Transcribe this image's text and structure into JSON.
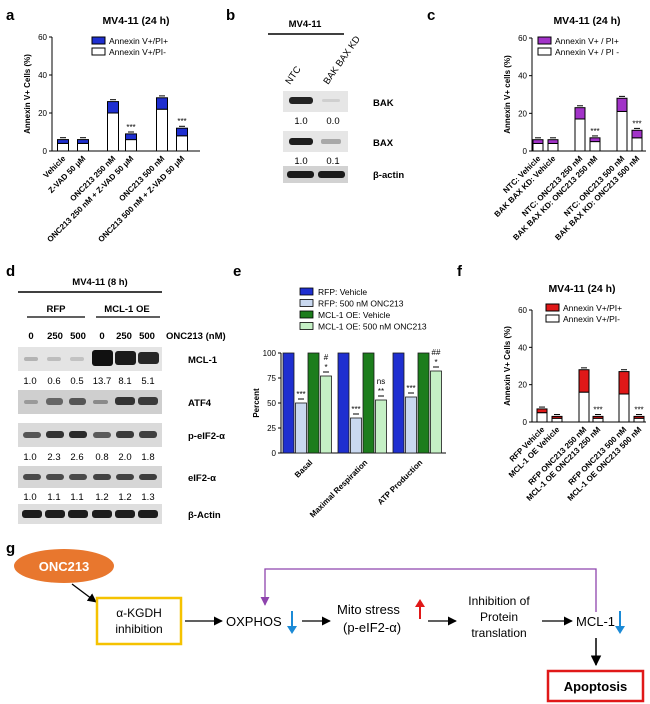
{
  "panels": {
    "a": "a",
    "b": "b",
    "c": "c",
    "d": "d",
    "e": "e",
    "f": "f",
    "g": "g"
  },
  "chart_data": [
    {
      "id": "a",
      "type": "bar",
      "title": "MV4-11 (24 h)",
      "ylabel": "Annexin V+ Cells (%)",
      "ylim": [
        0,
        60
      ],
      "yticks": [
        "0",
        "20",
        "40",
        "60"
      ],
      "categories": [
        "Vehicle",
        "Z-VAD 50 μM",
        "ONC213 250 nM",
        "ONC213 250 nM + Z-VAD 50 μM",
        "ONC213 500 nM",
        "ONC213 500 nM + Z-VAD 50 μM"
      ],
      "series": [
        {
          "name": "Annexin V+/PI-",
          "color": "#ffffff",
          "values": [
            4,
            4,
            20,
            6,
            22,
            8
          ]
        },
        {
          "name": "Annexin V+/PI+",
          "color": "#1f2fd0",
          "values": [
            2,
            2,
            6,
            3,
            6,
            4
          ]
        }
      ],
      "annotations": [
        "",
        "",
        "",
        "***",
        "",
        "***"
      ],
      "legend": "top-right"
    },
    {
      "id": "c",
      "type": "bar",
      "title": "MV4-11 (24 h)",
      "ylabel": "Annexin V+ cells (%)",
      "ylim": [
        0,
        60
      ],
      "yticks": [
        "0",
        "20",
        "40",
        "60"
      ],
      "categories": [
        "NTC: Vehicle",
        "BAK BAX KD: Vehicle",
        "NTC: ONC213 250 nM",
        "BAK BAX KD: ONC213 250 nM",
        "NTC: ONC213 500 nM",
        "BAK BAX KD: ONC213 500 nM"
      ],
      "series": [
        {
          "name": "Annexin V+ / PI -",
          "color": "#ffffff",
          "values": [
            4,
            4,
            17,
            5,
            21,
            7
          ]
        },
        {
          "name": "Annexin V+ / PI+",
          "color": "#a233c8",
          "values": [
            2,
            2,
            6,
            2,
            7,
            4
          ]
        }
      ],
      "annotations": [
        "",
        "",
        "",
        "***",
        "",
        "***"
      ],
      "legend": "top-right"
    },
    {
      "id": "e",
      "type": "bar",
      "ylabel": "Percent",
      "ylim": [
        0,
        100
      ],
      "yticks": [
        "0",
        "25",
        "50",
        "75",
        "100"
      ],
      "categories": [
        "Basal",
        "Maximal Respiration",
        "ATP Production"
      ],
      "series": [
        {
          "name": "RFP: Vehicle",
          "color": "#1f2fd0",
          "values": [
            100,
            100,
            100
          ]
        },
        {
          "name": "RFP: 500 nM ONC213",
          "color": "#c9d8f0",
          "values": [
            50,
            35,
            56
          ]
        },
        {
          "name": "MCL-1 OE: Vehicle",
          "color": "#1c7d1c",
          "values": [
            100,
            100,
            100
          ]
        },
        {
          "name": "MCL-1 OE: 500 nM ONC213",
          "color": "#c5f0c5",
          "values": [
            77,
            53,
            82
          ]
        }
      ],
      "annotations": [
        [
          "***",
          "*",
          "#"
        ],
        [
          "***",
          "**",
          "ns"
        ],
        [
          "***",
          "*",
          "##"
        ]
      ],
      "legend": "top-right"
    },
    {
      "id": "f",
      "type": "bar",
      "title": "MV4-11 (24 h)",
      "ylabel": "Annexin V+ Cells (%)",
      "ylim": [
        0,
        60
      ],
      "yticks": [
        "0",
        "20",
        "40",
        "60"
      ],
      "categories": [
        "RFP Vehicle",
        "MCL-1 OE Vehicle",
        "RFP ONC213 250 nM",
        "MCL-1 OE ONC213 250 nM",
        "RFP ONC213 500 nM",
        "MCL-1 OE ONC213 500 nM"
      ],
      "series": [
        {
          "name": "Annexin V+/PI-",
          "color": "#ffffff",
          "values": [
            5,
            2,
            16,
            2,
            15,
            2
          ]
        },
        {
          "name": "Annexin V+/PI+",
          "color": "#e01818",
          "values": [
            2,
            1,
            12,
            1,
            12,
            1
          ]
        }
      ],
      "annotations": [
        "",
        "",
        "",
        "***",
        "",
        "***"
      ],
      "legend": "top-right"
    }
  ],
  "blot_b": {
    "title": "MV4-11",
    "lanes": [
      "NTC",
      "BAK BAX KD"
    ],
    "bak": {
      "label": "BAK",
      "values": [
        "1.0",
        "0.0"
      ]
    },
    "bax": {
      "label": "BAX",
      "values": [
        "1.0",
        "0.1"
      ]
    },
    "actin": {
      "label": "β-actin"
    }
  },
  "blot_d": {
    "title": "MV4-11 (8 h)",
    "groups": [
      "RFP",
      "MCL-1 OE"
    ],
    "doses": [
      "0",
      "250",
      "500",
      "0",
      "250",
      "500"
    ],
    "dose_label": "ONC213 (nM)",
    "mcl1": {
      "label": "MCL-1",
      "values": [
        "1.0",
        "0.6",
        "0.5",
        "13.7",
        "8.1",
        "5.1"
      ]
    },
    "atf4": {
      "label": "ATF4"
    },
    "peif": {
      "label": "p-eIF2-α",
      "values": [
        "1.0",
        "2.3",
        "2.6",
        "0.8",
        "2.0",
        "1.8"
      ]
    },
    "eif": {
      "label": "eIF2-α",
      "values": [
        "1.0",
        "1.1",
        "1.1",
        "1.2",
        "1.2",
        "1.3"
      ]
    },
    "actin": {
      "label": "β-Actin"
    }
  },
  "diagram_g": {
    "drug": "ONC213",
    "kgdh": [
      "α-KGDH",
      "inhibition"
    ],
    "oxphos": "OXPHOS",
    "mito": [
      "Mito stress",
      "(p-eIF2-α)"
    ],
    "inhib": [
      "Inhibition of",
      "Protein",
      "translation"
    ],
    "mcl1": "MCL-1",
    "apoptosis": "Apoptosis",
    "colors": {
      "drug": "#e8772e",
      "kgdh_border": "#f5c200",
      "apoptosis_border": "#e01818",
      "loop": "#8e44ad",
      "down": "#1b8ad6",
      "up": "#e01818"
    }
  }
}
